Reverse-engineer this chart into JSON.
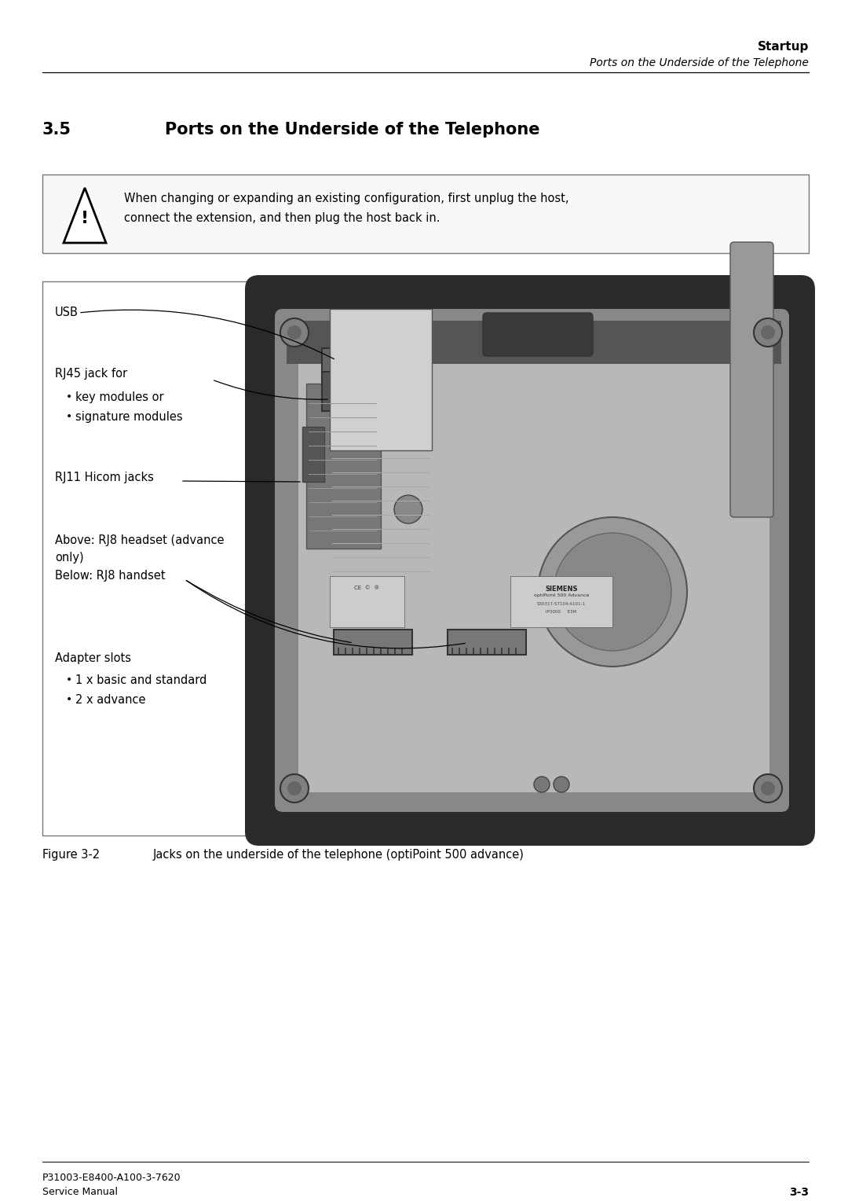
{
  "bg_color": "#ffffff",
  "header_bold": "Startup",
  "header_italic": "Ports on the Underside of the Telephone",
  "section_number": "3.5",
  "section_title": "Ports on the Underside of the Telephone",
  "warn_line1": "When changing or expanding an existing configuration, first unplug the host,",
  "warn_line2": "connect the extension, and then plug the host back in.",
  "lbl_usb": "USB",
  "lbl_rj45": "RJ45 jack for",
  "blt_rj45_1": "key modules or",
  "blt_rj45_2": "signature modules",
  "lbl_rj11": "RJ11 Hicom jacks",
  "lbl_rj8a1": "Above: RJ8 headset (advance",
  "lbl_rj8a2": "only)",
  "lbl_rj8b": "Below: RJ8 handset",
  "lbl_adapter": "Adapter slots",
  "blt_adp_1": "1 x basic and standard",
  "blt_adp_2": "2 x advance",
  "fig_caption_bold": "Figure 3-2",
  "fig_caption_normal": "      Jacks on the underside of the telephone (optiPoint 500 advance)",
  "footer_l1": "P31003-E8400-A100-3-7620",
  "footer_l2": "Service Manual",
  "footer_r": "3-3"
}
